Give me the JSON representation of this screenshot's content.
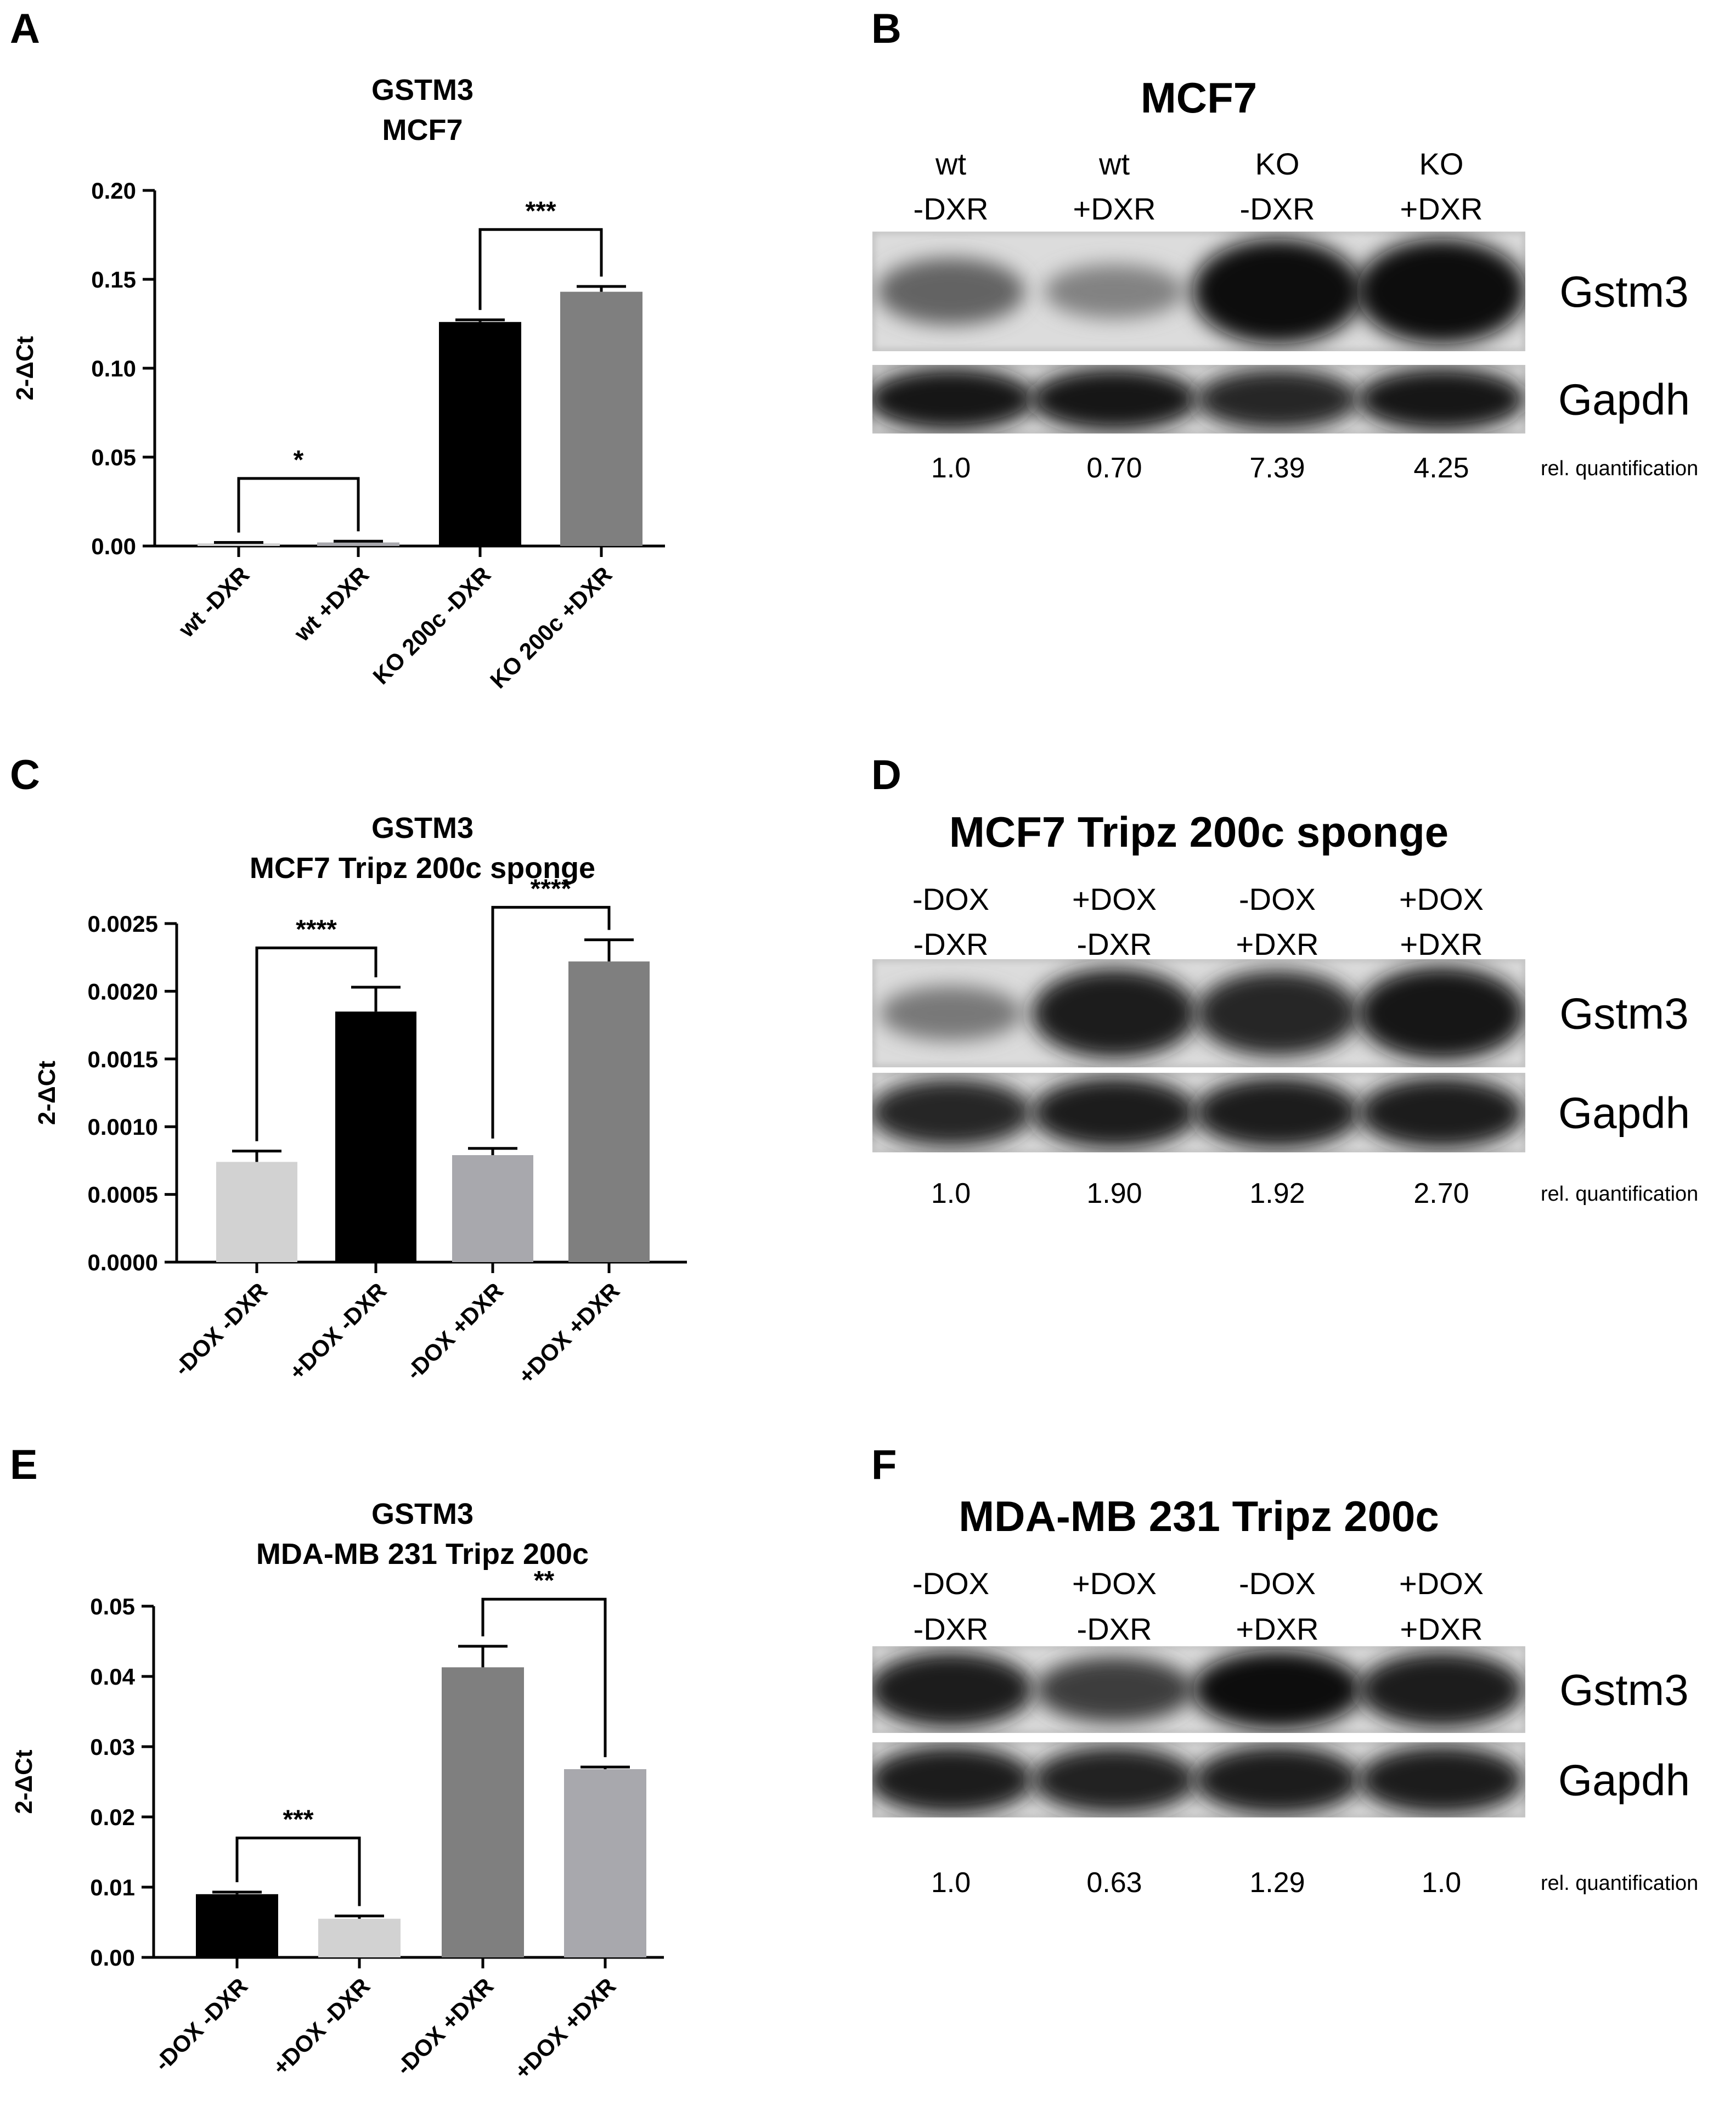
{
  "panels": [
    "A",
    "B",
    "C",
    "D",
    "E",
    "F"
  ],
  "chart_data": [
    {
      "panel": "A",
      "type": "bar",
      "title": "GSTM3",
      "subtitle": "MCF7",
      "ylabel": "2-ΔCt",
      "ylim": [
        0,
        0.2
      ],
      "yticks": [
        "0.00",
        "0.05",
        "0.10",
        "0.15",
        "0.20"
      ],
      "categories": [
        "wt -DXR",
        "wt +DXR",
        "KO 200c -DXR",
        "KO 200c +DXR"
      ],
      "values": [
        0.0015,
        0.002,
        0.126,
        0.143
      ],
      "errors": [
        0.0005,
        0.0007,
        0.0012,
        0.003
      ],
      "colors": [
        "#d2d2d2",
        "#a8a8ad",
        "#000000",
        "#7f7f7f"
      ],
      "significance": [
        {
          "from": 0,
          "to": 1,
          "label": "*",
          "level": 0.038
        },
        {
          "from": 2,
          "to": 3,
          "label": "***",
          "level": 0.178
        }
      ]
    },
    {
      "panel": "C",
      "type": "bar",
      "title": "GSTM3",
      "subtitle": "MCF7 Tripz 200c sponge",
      "ylabel": "2-ΔCt",
      "ylim": [
        0,
        0.0025
      ],
      "yticks": [
        "0.0000",
        "0.0005",
        "0.0010",
        "0.0015",
        "0.0020",
        "0.0025"
      ],
      "categories": [
        "-DOX -DXR",
        "+DOX -DXR",
        "-DOX +DXR",
        "+DOX +DXR"
      ],
      "values": [
        0.00074,
        0.00185,
        0.00079,
        0.00222
      ],
      "errors": [
        8e-05,
        0.00018,
        5e-05,
        0.00016
      ],
      "colors": [
        "#d2d2d2",
        "#000000",
        "#a8a8ad",
        "#7f7f7f"
      ],
      "significance": [
        {
          "from": 0,
          "to": 1,
          "label": "****",
          "level": 0.00232
        },
        {
          "from": 2,
          "to": 3,
          "label": "****",
          "level": 0.00262
        }
      ]
    },
    {
      "panel": "E",
      "type": "bar",
      "title": "GSTM3",
      "subtitle": "MDA-MB 231 Tripz 200c",
      "ylabel": "2-ΔCt",
      "ylim": [
        0,
        0.05
      ],
      "yticks": [
        "0.00",
        "0.01",
        "0.02",
        "0.03",
        "0.04",
        "0.05"
      ],
      "categories": [
        "-DOX -DXR",
        "+DOX -DXR",
        "-DOX +DXR",
        "+DOX +DXR"
      ],
      "values": [
        0.009,
        0.0055,
        0.0413,
        0.0268
      ],
      "errors": [
        0.0003,
        0.0004,
        0.003,
        0.0003
      ],
      "colors": [
        "#000000",
        "#d2d2d2",
        "#7f7f7f",
        "#a8a8ad"
      ],
      "significance": [
        {
          "from": 0,
          "to": 1,
          "label": "***",
          "level": 0.017
        },
        {
          "from": 2,
          "to": 3,
          "label": "**",
          "level": 0.051
        }
      ]
    }
  ],
  "blots": [
    {
      "panel": "B",
      "title": "MCF7",
      "lanes": [
        {
          "top": "wt",
          "bottom": "-DXR"
        },
        {
          "top": "wt",
          "bottom": "+DXR"
        },
        {
          "top": "KO",
          "bottom": "-DXR"
        },
        {
          "top": "KO",
          "bottom": "+DXR"
        }
      ],
      "rows": [
        "Gstm3",
        "Gapdh"
      ],
      "intensities": [
        [
          0.55,
          0.4,
          1.0,
          1.0
        ],
        [
          0.95,
          0.95,
          0.85,
          0.95
        ]
      ],
      "quantification": [
        "1.0",
        "0.70",
        "7.39",
        "4.25"
      ],
      "quant_label": "rel. quantification"
    },
    {
      "panel": "D",
      "title": "MCF7 Tripz 200c sponge",
      "lanes": [
        {
          "top": "-DOX",
          "bottom": "-DXR"
        },
        {
          "top": "+DOX",
          "bottom": "-DXR"
        },
        {
          "top": "-DOX",
          "bottom": "+DXR"
        },
        {
          "top": "+DOX",
          "bottom": "+DXR"
        }
      ],
      "rows": [
        "Gstm3",
        "Gapdh"
      ],
      "intensities": [
        [
          0.45,
          0.9,
          0.85,
          0.95
        ],
        [
          0.85,
          0.9,
          0.9,
          0.9
        ]
      ],
      "quantification": [
        "1.0",
        "1.90",
        "1.92",
        "2.70"
      ],
      "quant_label": "rel. quantification"
    },
    {
      "panel": "F",
      "title": "MDA-MB 231 Tripz 200c",
      "lanes": [
        {
          "top": "-DOX",
          "bottom": "-DXR"
        },
        {
          "top": "+DOX",
          "bottom": "-DXR"
        },
        {
          "top": "-DOX",
          "bottom": "+DXR"
        },
        {
          "top": "+DOX",
          "bottom": "+DXR"
        }
      ],
      "rows": [
        "Gstm3",
        "Gapdh"
      ],
      "intensities": [
        [
          0.9,
          0.75,
          1.0,
          0.9
        ],
        [
          0.9,
          0.88,
          0.92,
          0.9
        ]
      ],
      "quantification": [
        "1.0",
        "0.63",
        "1.29",
        "1.0"
      ],
      "quant_label": "rel. quantification"
    }
  ]
}
